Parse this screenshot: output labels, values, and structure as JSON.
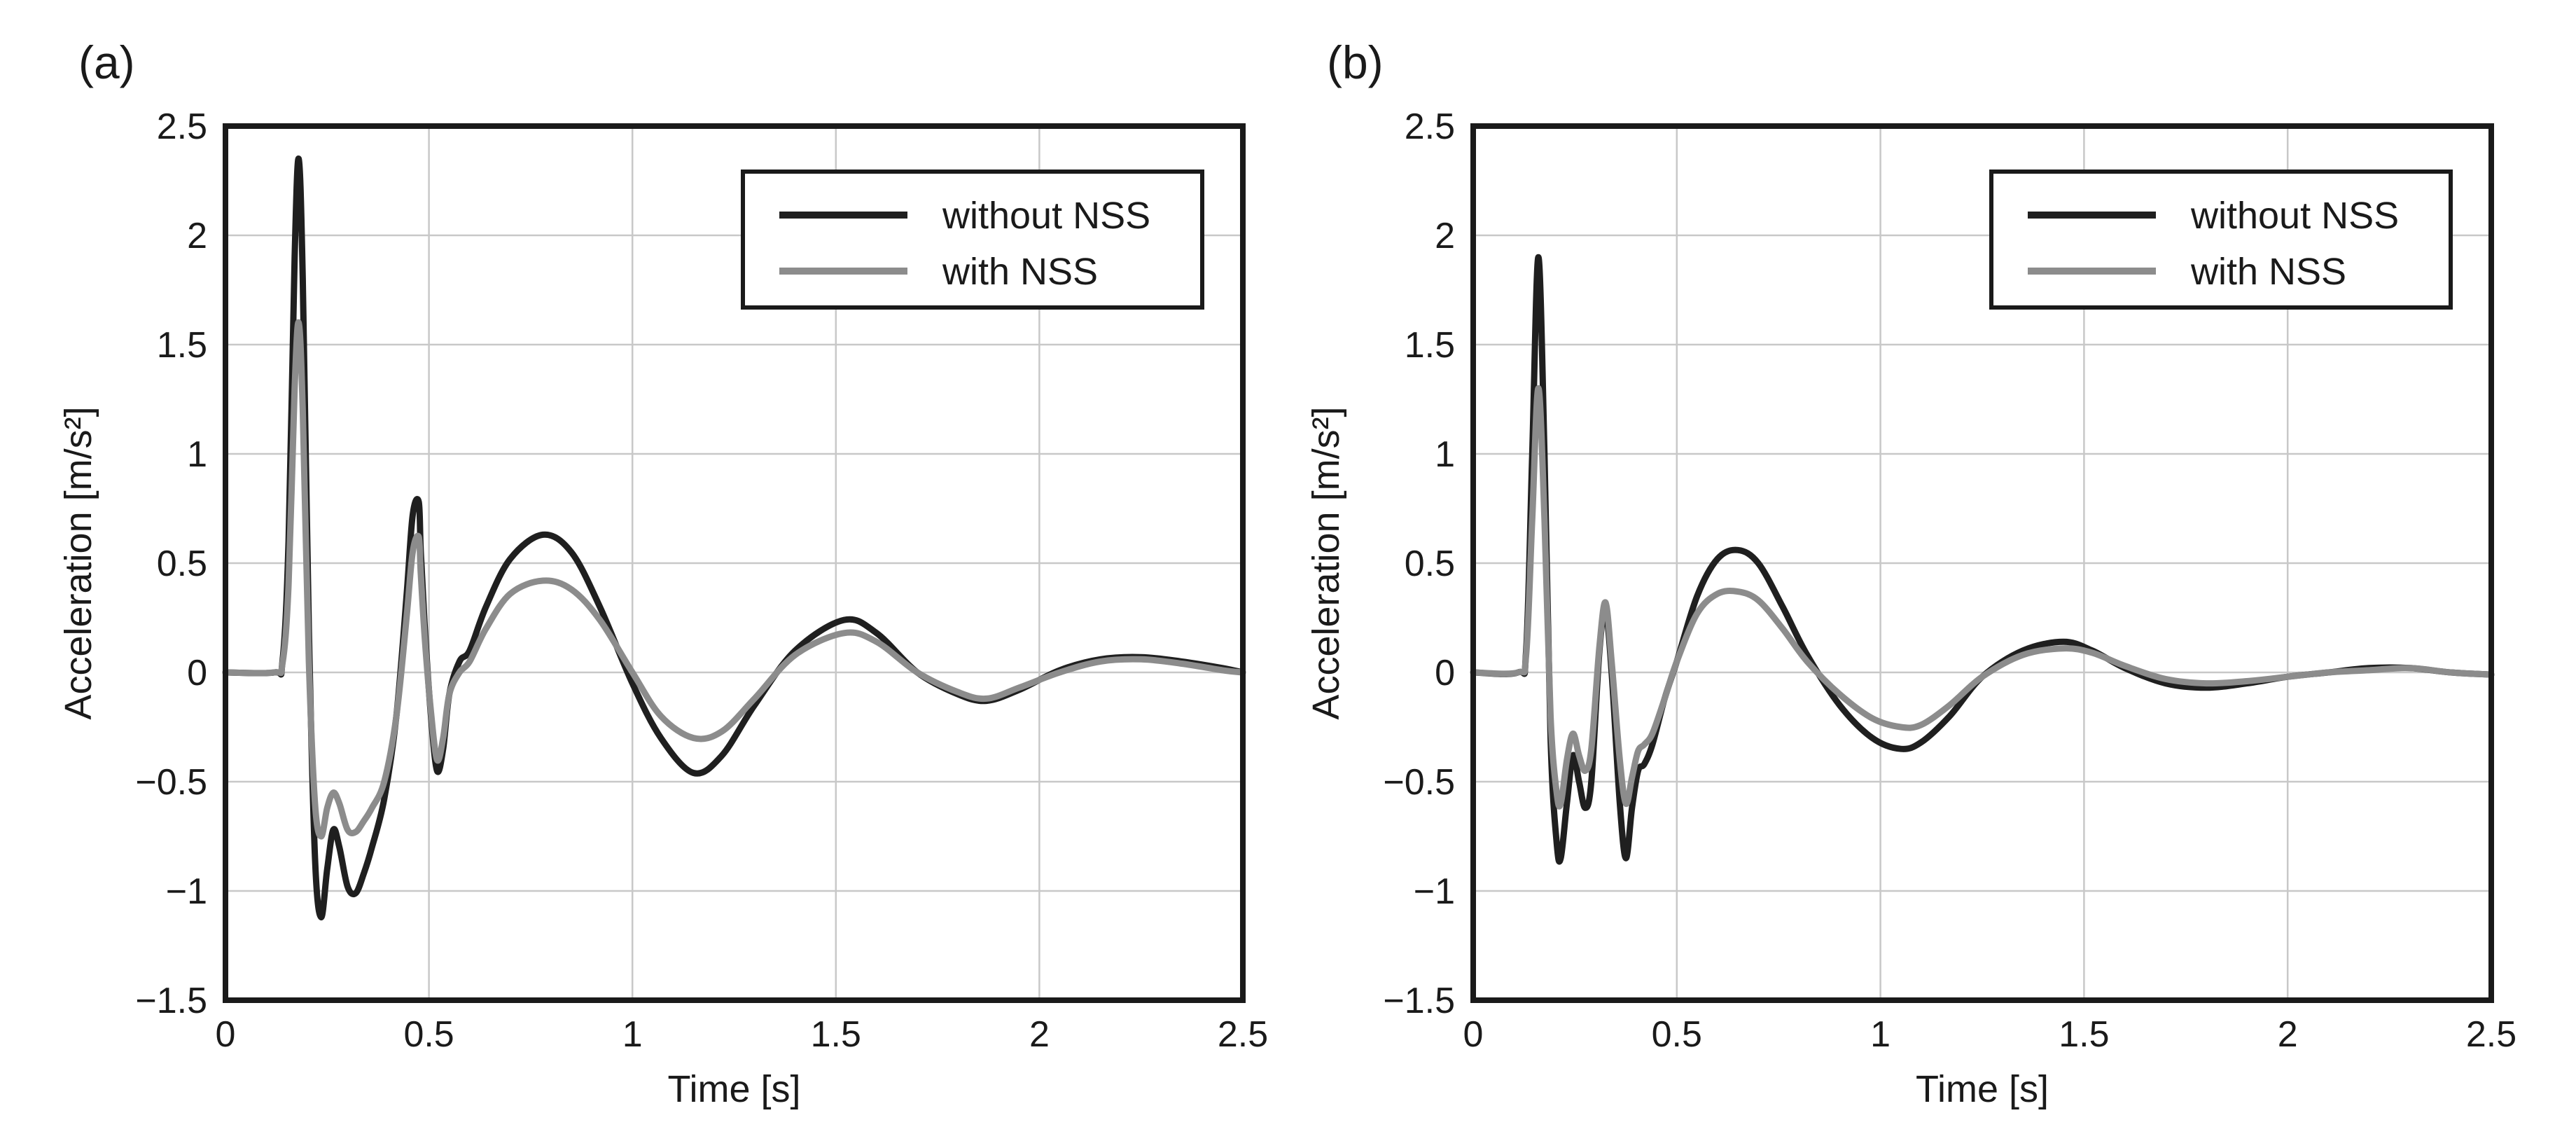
{
  "chart_data": [
    {
      "panel_label": "(a)",
      "type": "line",
      "xlabel": "Time [s]",
      "ylabel": "Acceleration [m/s²]",
      "xlim": [
        0,
        2.5
      ],
      "ylim": [
        -1.5,
        2.5
      ],
      "xticks": [
        0,
        0.5,
        1,
        1.5,
        2,
        2.5
      ],
      "xtick_labels": [
        "0",
        "0.5",
        "1",
        "1.5",
        "2",
        "2.5"
      ],
      "yticks": [
        -1.5,
        -1,
        -0.5,
        0,
        0.5,
        1,
        1.5,
        2,
        2.5
      ],
      "ytick_labels": [
        "−1.5",
        "−1",
        "−0.5",
        "0",
        "0.5",
        "1",
        "1.5",
        "2",
        "2.5"
      ],
      "grid": true,
      "legend_position": "top-right",
      "series": [
        {
          "name": "without NSS",
          "color": "#1f1f1f",
          "x": [
            0,
            0.12,
            0.14,
            0.155,
            0.17,
            0.18,
            0.19,
            0.205,
            0.22,
            0.235,
            0.25,
            0.265,
            0.28,
            0.3,
            0.32,
            0.34,
            0.36,
            0.39,
            0.42,
            0.445,
            0.46,
            0.475,
            0.48,
            0.49,
            0.505,
            0.52,
            0.535,
            0.55,
            0.575,
            0.6,
            0.64,
            0.7,
            0.78,
            0.85,
            0.92,
            1.0,
            1.07,
            1.15,
            1.22,
            1.3,
            1.4,
            1.52,
            1.6,
            1.7,
            1.8,
            1.87,
            1.95,
            2.05,
            2.15,
            2.25,
            2.35,
            2.45,
            2.5
          ],
          "y": [
            0,
            0,
            0.05,
            0.6,
            1.9,
            2.35,
            1.8,
            0.2,
            -0.85,
            -1.12,
            -0.9,
            -0.72,
            -0.8,
            -0.98,
            -1.01,
            -0.92,
            -0.8,
            -0.58,
            -0.2,
            0.35,
            0.72,
            0.78,
            0.55,
            0.2,
            -0.2,
            -0.45,
            -0.35,
            -0.1,
            0.05,
            0.1,
            0.3,
            0.52,
            0.63,
            0.55,
            0.3,
            -0.05,
            -0.3,
            -0.46,
            -0.38,
            -0.15,
            0.1,
            0.24,
            0.18,
            0.0,
            -0.1,
            -0.13,
            -0.08,
            0.01,
            0.06,
            0.07,
            0.05,
            0.02,
            0.0
          ]
        },
        {
          "name": "with NSS",
          "color": "#8c8c8c",
          "x": [
            0,
            0.12,
            0.14,
            0.155,
            0.17,
            0.18,
            0.19,
            0.205,
            0.22,
            0.235,
            0.25,
            0.265,
            0.28,
            0.3,
            0.32,
            0.34,
            0.36,
            0.39,
            0.42,
            0.445,
            0.46,
            0.475,
            0.48,
            0.49,
            0.505,
            0.52,
            0.535,
            0.55,
            0.575,
            0.6,
            0.64,
            0.7,
            0.78,
            0.85,
            0.92,
            1.0,
            1.07,
            1.15,
            1.22,
            1.3,
            1.4,
            1.52,
            1.6,
            1.7,
            1.8,
            1.87,
            1.95,
            2.05,
            2.15,
            2.25,
            2.35,
            2.45,
            2.5
          ],
          "y": [
            0,
            0,
            0.04,
            0.4,
            1.3,
            1.6,
            1.2,
            0.05,
            -0.6,
            -0.75,
            -0.62,
            -0.55,
            -0.6,
            -0.72,
            -0.73,
            -0.68,
            -0.62,
            -0.5,
            -0.2,
            0.25,
            0.55,
            0.62,
            0.45,
            0.15,
            -0.18,
            -0.4,
            -0.3,
            -0.1,
            0.0,
            0.05,
            0.2,
            0.36,
            0.42,
            0.38,
            0.24,
            0.0,
            -0.2,
            -0.3,
            -0.27,
            -0.12,
            0.08,
            0.18,
            0.14,
            0.0,
            -0.09,
            -0.12,
            -0.07,
            0.0,
            0.05,
            0.06,
            0.04,
            0.01,
            0.0
          ]
        }
      ]
    },
    {
      "panel_label": "(b)",
      "type": "line",
      "xlabel": "Time [s]",
      "ylabel": "Acceleration [m/s²]",
      "xlim": [
        0,
        2.5
      ],
      "ylim": [
        -1.5,
        2.5
      ],
      "xticks": [
        0,
        0.5,
        1,
        1.5,
        2,
        2.5
      ],
      "xtick_labels": [
        "0",
        "0.5",
        "1",
        "1.5",
        "2",
        "2.5"
      ],
      "yticks": [
        -1.5,
        -1,
        -0.5,
        0,
        0.5,
        1,
        1.5,
        2,
        2.5
      ],
      "ytick_labels": [
        "−1.5",
        "−1",
        "−0.5",
        "0",
        "0.5",
        "1",
        "1.5",
        "2",
        "2.5"
      ],
      "grid": true,
      "legend_position": "top-right",
      "series": [
        {
          "name": "without NSS",
          "color": "#1f1f1f",
          "x": [
            0,
            0.11,
            0.13,
            0.145,
            0.16,
            0.175,
            0.19,
            0.205,
            0.215,
            0.23,
            0.245,
            0.26,
            0.275,
            0.29,
            0.31,
            0.325,
            0.34,
            0.36,
            0.375,
            0.39,
            0.405,
            0.42,
            0.44,
            0.47,
            0.5,
            0.55,
            0.6,
            0.65,
            0.7,
            0.76,
            0.82,
            0.9,
            0.98,
            1.05,
            1.1,
            1.17,
            1.25,
            1.35,
            1.45,
            1.52,
            1.6,
            1.7,
            1.8,
            1.9,
            2.0,
            2.1,
            2.2,
            2.3,
            2.4,
            2.5
          ],
          "y": [
            0,
            0,
            0.1,
            1.0,
            1.9,
            1.0,
            -0.3,
            -0.78,
            -0.85,
            -0.6,
            -0.38,
            -0.5,
            -0.62,
            -0.5,
            0.1,
            0.28,
            0.0,
            -0.6,
            -0.85,
            -0.62,
            -0.45,
            -0.42,
            -0.33,
            -0.12,
            0.05,
            0.35,
            0.52,
            0.56,
            0.5,
            0.3,
            0.08,
            -0.15,
            -0.3,
            -0.35,
            -0.32,
            -0.2,
            -0.02,
            0.1,
            0.14,
            0.1,
            0.02,
            -0.05,
            -0.07,
            -0.05,
            -0.02,
            0.0,
            0.02,
            0.02,
            0.0,
            -0.01
          ]
        },
        {
          "name": "with NSS",
          "color": "#8c8c8c",
          "x": [
            0,
            0.11,
            0.13,
            0.145,
            0.16,
            0.175,
            0.19,
            0.205,
            0.215,
            0.23,
            0.245,
            0.26,
            0.275,
            0.29,
            0.31,
            0.325,
            0.34,
            0.36,
            0.375,
            0.39,
            0.405,
            0.42,
            0.44,
            0.47,
            0.5,
            0.55,
            0.6,
            0.65,
            0.7,
            0.76,
            0.82,
            0.9,
            0.98,
            1.05,
            1.1,
            1.17,
            1.25,
            1.35,
            1.45,
            1.52,
            1.6,
            1.7,
            1.8,
            1.9,
            2.0,
            2.1,
            2.2,
            2.3,
            2.4,
            2.5
          ],
          "y": [
            0,
            0,
            0.08,
            0.7,
            1.3,
            0.7,
            -0.2,
            -0.55,
            -0.6,
            -0.4,
            -0.28,
            -0.38,
            -0.45,
            -0.35,
            0.12,
            0.32,
            0.05,
            -0.4,
            -0.6,
            -0.48,
            -0.36,
            -0.33,
            -0.28,
            -0.12,
            0.05,
            0.27,
            0.36,
            0.37,
            0.33,
            0.2,
            0.05,
            -0.1,
            -0.21,
            -0.25,
            -0.24,
            -0.15,
            -0.02,
            0.08,
            0.11,
            0.09,
            0.03,
            -0.03,
            -0.05,
            -0.04,
            -0.02,
            0.0,
            0.01,
            0.02,
            0.0,
            -0.01
          ]
        }
      ]
    }
  ]
}
